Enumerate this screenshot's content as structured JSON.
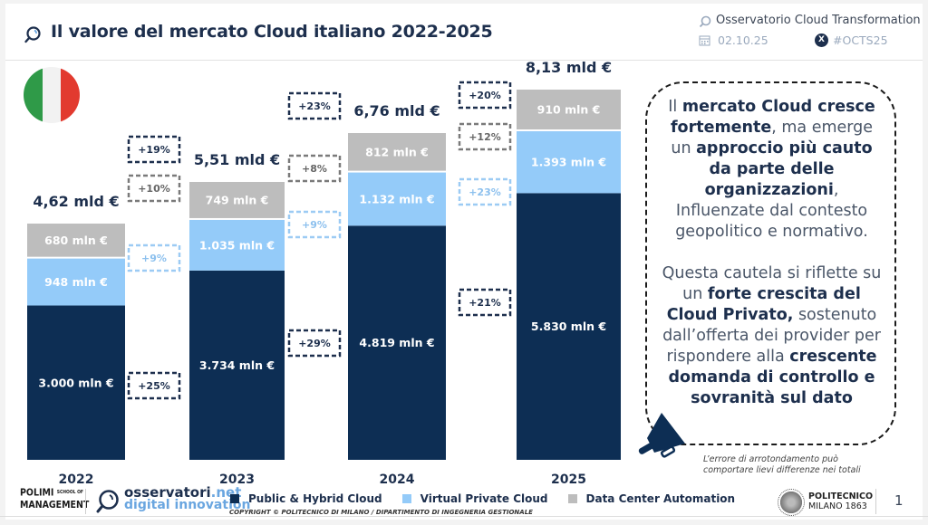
{
  "header": {
    "title": "Il valore del mercato Cloud italiano 2022-2025",
    "observatory": "Osservatorio Cloud Transformation",
    "date": "02.10.25",
    "hashtag": "#OCTS25",
    "x_icon_glyph": "X"
  },
  "colors": {
    "public_hybrid": "#0d2e54",
    "virtual_private": "#94cbf9",
    "data_center": "#bdbdbd",
    "title_navy": "#1d2f4d"
  },
  "chart_data": {
    "type": "bar",
    "stacked": true,
    "title": "Il valore del mercato Cloud italiano 2022-2025",
    "categories": [
      "2022",
      "2023",
      "2024",
      "2025"
    ],
    "unit": "mln €",
    "series": [
      {
        "name": "Public & Hybrid Cloud",
        "values": [
          3000,
          3734,
          4819,
          5830
        ],
        "labels": [
          "3.000 mln €",
          "3.734 mln €",
          "4.819 mln €",
          "5.830 mln €"
        ]
      },
      {
        "name": "Virtual Private Cloud",
        "values": [
          948,
          1035,
          1132,
          1393
        ],
        "labels": [
          "948 mln €",
          "1.035 mln €",
          "1.132 mln €",
          "1.393 mln €"
        ]
      },
      {
        "name": "Data Center Automation",
        "values": [
          680,
          749,
          812,
          910
        ],
        "labels": [
          "680 mln €",
          "749 mln €",
          "812 mln €",
          "910 mln €"
        ]
      }
    ],
    "totals": [
      "4,62 mld €",
      "5,51 mld €",
      "6,76 mld €",
      "8,13 mld €"
    ],
    "growth": [
      {
        "period": "2022-2023",
        "total": "+19%",
        "data_center": "+10%",
        "virtual_private": "+9%",
        "public_hybrid": "+25%"
      },
      {
        "period": "2023-2024",
        "total": "+23%",
        "data_center": "+8%",
        "virtual_private": "+9%",
        "public_hybrid": "+29%"
      },
      {
        "period": "2024-2025",
        "total": "+20%",
        "data_center": "+12%",
        "virtual_private": "+23%",
        "public_hybrid": "+21%"
      }
    ],
    "legend_position": "bottom",
    "xlabel": "",
    "ylabel": "",
    "grid": false
  },
  "callout": {
    "p1": [
      {
        "t": "Il ",
        "b": false
      },
      {
        "t": "mercato Cloud cresce fortemente",
        "b": true
      },
      {
        "t": ", ma emerge un ",
        "b": false
      },
      {
        "t": "approccio più cauto da parte delle organizzazioni",
        "b": true
      },
      {
        "t": ", Influenzate dal contesto geopolitico e normativo.",
        "b": false
      }
    ],
    "p2": [
      {
        "t": "Questa cautela si riflette su un ",
        "b": false
      },
      {
        "t": "forte crescita del Cloud Privato,",
        "b": true
      },
      {
        "t": " sostenuto dall’offerta dei provider per rispondere alla ",
        "b": false
      },
      {
        "t": "crescente domanda di controllo e sovranità sul dato",
        "b": true
      }
    ]
  },
  "note": "L’errore di arrotondamento può comportare lievi differenze nei totali",
  "footer": {
    "polimi_line1": "POLIMI",
    "polimi_small": "SCHOOL OF",
    "polimi_line2": "MANAGEMENT",
    "osserv_name": "osservatori",
    "osserv_tld": ".net",
    "osserv_sub": "digital innovation",
    "legend": [
      "Public & Hybrid Cloud",
      "Virtual Private Cloud",
      "Data Center Automation"
    ],
    "copyright": "COPYRIGHT © POLITECNICO DI MILANO / DIPARTIMENTO DI INGEGNERIA GESTIONALE",
    "poli_line1": "POLITECNICO",
    "poli_line2": "MILANO 1863",
    "page_number": "1"
  }
}
